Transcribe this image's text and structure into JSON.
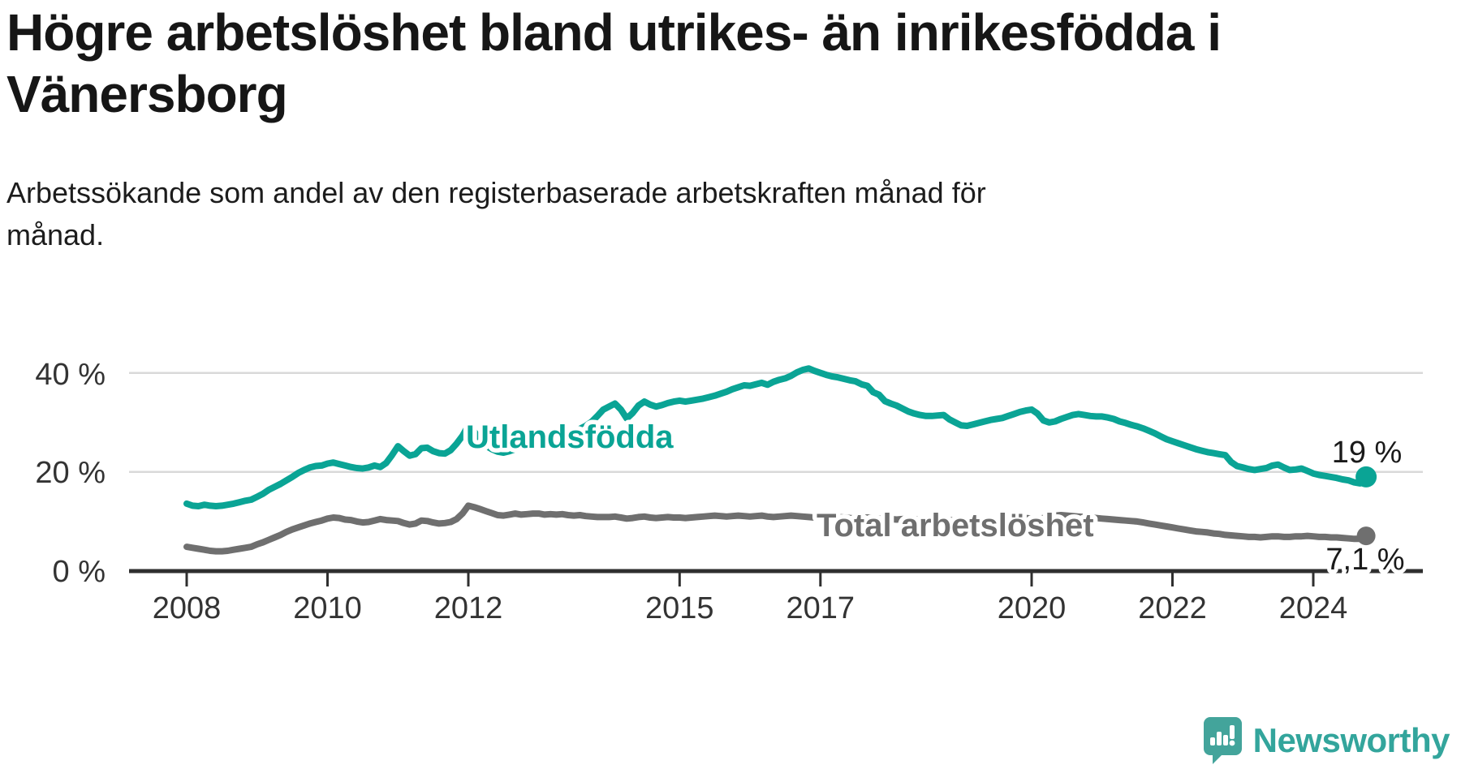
{
  "title": {
    "line1": "Högre arbetslöshet bland utrikes- än inrikesfödda i",
    "line2": "Vänersborg"
  },
  "subtitle": {
    "line1": "Arbetssökande som andel av den registerbaserade arbetskraften månad för",
    "line2": "månad."
  },
  "chart_data": {
    "type": "line",
    "x_unit": "month",
    "x_start": "2008-01",
    "x_end": "2024-10",
    "ylim": [
      0,
      42
    ],
    "grid": "horizontal",
    "x_tick_labels": [
      "2008",
      "2010",
      "2012",
      "2015",
      "2017",
      "2020",
      "2022",
      "2024"
    ],
    "y_tick_labels": [
      "40 %",
      "20 %",
      "0 %"
    ],
    "series": [
      {
        "name": "Utlandsfödda",
        "color": "#0aa495",
        "end_label": "19 %",
        "values": [
          13.6,
          13.2,
          13.1,
          13.4,
          13.2,
          13.1,
          13.2,
          13.4,
          13.6,
          13.9,
          14.2,
          14.4,
          15.0,
          15.6,
          16.4,
          17.0,
          17.6,
          18.3,
          19.0,
          19.8,
          20.4,
          20.9,
          21.2,
          21.3,
          21.7,
          21.9,
          21.6,
          21.3,
          21.0,
          20.8,
          20.7,
          20.9,
          21.3,
          21.0,
          21.8,
          23.4,
          25.2,
          24.2,
          23.3,
          23.6,
          24.8,
          24.9,
          24.2,
          23.8,
          23.7,
          24.4,
          25.7,
          27.3,
          29.4,
          28.2,
          26.4,
          25.3,
          24.6,
          24.1,
          23.9,
          24.2,
          24.6,
          25.0,
          25.4,
          25.8,
          26.2,
          26.5,
          26.8,
          27.1,
          27.4,
          27.8,
          28.2,
          28.7,
          29.3,
          30.1,
          31.3,
          32.6,
          33.2,
          33.8,
          32.6,
          30.8,
          31.9,
          33.4,
          34.2,
          33.6,
          33.2,
          33.5,
          33.9,
          34.2,
          34.4,
          34.2,
          34.4,
          34.6,
          34.8,
          35.1,
          35.4,
          35.8,
          36.2,
          36.7,
          37.1,
          37.5,
          37.4,
          37.7,
          38.0,
          37.6,
          38.2,
          38.6,
          38.9,
          39.4,
          40.1,
          40.6,
          40.9,
          40.4,
          40.0,
          39.6,
          39.3,
          39.1,
          38.8,
          38.5,
          38.3,
          37.7,
          37.4,
          36.1,
          35.6,
          34.3,
          33.8,
          33.4,
          32.8,
          32.2,
          31.8,
          31.5,
          31.3,
          31.3,
          31.4,
          31.5,
          30.6,
          30.0,
          29.4,
          29.3,
          29.6,
          29.9,
          30.2,
          30.5,
          30.7,
          30.9,
          31.3,
          31.7,
          32.1,
          32.4,
          32.6,
          31.8,
          30.4,
          30.0,
          30.2,
          30.7,
          31.1,
          31.5,
          31.7,
          31.5,
          31.3,
          31.2,
          31.2,
          31.0,
          30.7,
          30.2,
          29.9,
          29.5,
          29.2,
          28.8,
          28.3,
          27.8,
          27.2,
          26.6,
          26.2,
          25.8,
          25.4,
          25.0,
          24.6,
          24.3,
          24.0,
          23.8,
          23.6,
          23.4,
          22.0,
          21.2,
          20.9,
          20.6,
          20.4,
          20.6,
          20.8,
          21.3,
          21.5,
          20.9,
          20.4,
          20.5,
          20.7,
          20.2,
          19.7,
          19.4,
          19.2,
          19.0,
          18.8,
          18.5,
          18.3,
          17.9,
          17.7,
          19.0
        ]
      },
      {
        "name": "Total arbetslöshet",
        "color": "#6f6f6f",
        "end_label": "7,1 %",
        "values": [
          4.9,
          4.7,
          4.5,
          4.3,
          4.1,
          4.0,
          4.0,
          4.1,
          4.3,
          4.5,
          4.7,
          4.9,
          5.4,
          5.8,
          6.3,
          6.8,
          7.3,
          7.9,
          8.4,
          8.8,
          9.2,
          9.6,
          9.9,
          10.2,
          10.6,
          10.8,
          10.7,
          10.4,
          10.3,
          10.0,
          9.8,
          9.9,
          10.2,
          10.5,
          10.3,
          10.2,
          10.1,
          9.7,
          9.4,
          9.6,
          10.2,
          10.1,
          9.8,
          9.6,
          9.7,
          9.9,
          10.5,
          11.6,
          13.2,
          12.9,
          12.5,
          12.1,
          11.7,
          11.3,
          11.2,
          11.4,
          11.6,
          11.4,
          11.5,
          11.6,
          11.6,
          11.4,
          11.5,
          11.4,
          11.5,
          11.3,
          11.2,
          11.3,
          11.1,
          11.0,
          10.9,
          10.9,
          10.9,
          11.0,
          10.8,
          10.6,
          10.7,
          10.9,
          11.0,
          10.8,
          10.7,
          10.8,
          10.9,
          10.8,
          10.8,
          10.7,
          10.8,
          10.9,
          11.0,
          11.1,
          11.2,
          11.1,
          11.0,
          11.1,
          11.2,
          11.1,
          11.0,
          11.1,
          11.2,
          11.0,
          10.9,
          11.0,
          11.1,
          11.2,
          11.1,
          11.0,
          10.9,
          10.8,
          10.8,
          10.7,
          10.8,
          10.9,
          10.8,
          10.7,
          10.6,
          10.7,
          10.8,
          10.7,
          10.6,
          10.5,
          10.5,
          10.4,
          10.5,
          10.6,
          10.5,
          10.4,
          10.3,
          10.4,
          10.5,
          10.4,
          10.3,
          10.2,
          10.2,
          10.1,
          10.2,
          10.3,
          10.4,
          10.3,
          10.2,
          10.3,
          10.4,
          10.5,
          10.6,
          10.7,
          10.6,
          10.5,
          10.7,
          11.0,
          11.2,
          11.3,
          11.2,
          11.1,
          11.0,
          10.9,
          10.8,
          10.7,
          10.6,
          10.5,
          10.4,
          10.3,
          10.2,
          10.1,
          10.0,
          9.8,
          9.6,
          9.4,
          9.2,
          9.0,
          8.8,
          8.6,
          8.4,
          8.2,
          8.0,
          7.9,
          7.8,
          7.6,
          7.5,
          7.3,
          7.2,
          7.1,
          7.0,
          6.9,
          6.9,
          6.8,
          6.9,
          7.0,
          7.0,
          6.9,
          6.9,
          7.0,
          7.0,
          7.1,
          7.0,
          6.9,
          6.9,
          6.8,
          6.8,
          6.7,
          6.6,
          6.5,
          6.5,
          7.1
        ]
      }
    ]
  },
  "logo": {
    "text": "Newsworthy",
    "icon": "bar-chart-speech-bubble-icon",
    "icon_color": "#43a49b",
    "text_color": "#33a59c"
  }
}
